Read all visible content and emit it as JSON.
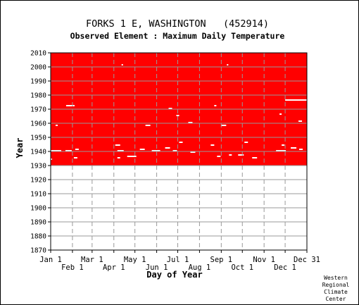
{
  "chart_data": {
    "type": "heatmap",
    "title": "FORKS 1 E, WASHINGTON   (452914)",
    "subtitle": "Observed Element : Maximum Daily Temperature",
    "xlabel": "Day of Year",
    "ylabel": "Year",
    "ylim": [
      1870,
      2010
    ],
    "xlim": [
      1,
      366
    ],
    "y_ticks": [
      1870,
      1880,
      1890,
      1900,
      1910,
      1920,
      1930,
      1940,
      1950,
      1960,
      1970,
      1980,
      1990,
      2000,
      2010
    ],
    "x_ticks_top": [
      {
        "label": "Jan 1",
        "day": 1
      },
      {
        "label": "Mar 1",
        "day": 60
      },
      {
        "label": "May 1",
        "day": 121
      },
      {
        "label": "Jul 1",
        "day": 182
      },
      {
        "label": "Sep 1",
        "day": 244
      },
      {
        "label": "Nov 1",
        "day": 305
      },
      {
        "label": "Dec 31",
        "day": 366
      }
    ],
    "x_ticks_bottom": [
      {
        "label": "Feb 1",
        "day": 32
      },
      {
        "label": "Apr 1",
        "day": 91
      },
      {
        "label": "Jun 1",
        "day": 152
      },
      {
        "label": "Aug 1",
        "day": 213
      },
      {
        "label": "Oct 1",
        "day": 274
      },
      {
        "label": "Dec 1",
        "day": 335
      }
    ],
    "grid": true,
    "data_color": "#ff0000",
    "data_period": {
      "start_year": 1930,
      "end_year": 2010
    },
    "missing_segments": [
      {
        "year": 1934,
        "day_start": 1,
        "day_end": 2
      },
      {
        "year": 1935,
        "day_start": 34,
        "day_end": 38
      },
      {
        "year": 1935,
        "day_start": 96,
        "day_end": 99
      },
      {
        "year": 1935,
        "day_start": 288,
        "day_end": 294
      },
      {
        "year": 1936,
        "day_start": 110,
        "day_end": 122
      },
      {
        "year": 1936,
        "day_start": 238,
        "day_end": 242
      },
      {
        "year": 1937,
        "day_start": 255,
        "day_end": 258
      },
      {
        "year": 1937,
        "day_start": 268,
        "day_end": 275
      },
      {
        "year": 1939,
        "day_start": 200,
        "day_end": 206
      },
      {
        "year": 1940,
        "day_start": 1,
        "day_end": 15
      },
      {
        "year": 1940,
        "day_start": 22,
        "day_end": 30
      },
      {
        "year": 1940,
        "day_start": 96,
        "day_end": 104
      },
      {
        "year": 1940,
        "day_start": 145,
        "day_end": 156
      },
      {
        "year": 1940,
        "day_start": 175,
        "day_end": 180
      },
      {
        "year": 1940,
        "day_start": 322,
        "day_end": 335
      },
      {
        "year": 1941,
        "day_start": 36,
        "day_end": 40
      },
      {
        "year": 1941,
        "day_start": 128,
        "day_end": 134
      },
      {
        "year": 1941,
        "day_start": 355,
        "day_end": 359
      },
      {
        "year": 1942,
        "day_start": 164,
        "day_end": 170
      },
      {
        "year": 1942,
        "day_start": 343,
        "day_end": 350
      },
      {
        "year": 1944,
        "day_start": 93,
        "day_end": 99
      },
      {
        "year": 1944,
        "day_start": 229,
        "day_end": 233
      },
      {
        "year": 1944,
        "day_start": 330,
        "day_end": 333
      },
      {
        "year": 1946,
        "day_start": 184,
        "day_end": 188
      },
      {
        "year": 1946,
        "day_start": 277,
        "day_end": 281
      },
      {
        "year": 1958,
        "day_start": 8,
        "day_end": 10
      },
      {
        "year": 1958,
        "day_start": 136,
        "day_end": 142
      },
      {
        "year": 1958,
        "day_start": 244,
        "day_end": 250
      },
      {
        "year": 1960,
        "day_start": 197,
        "day_end": 202
      },
      {
        "year": 1961,
        "day_start": 354,
        "day_end": 358
      },
      {
        "year": 1965,
        "day_start": 180,
        "day_end": 183
      },
      {
        "year": 1966,
        "day_start": 327,
        "day_end": 329
      },
      {
        "year": 1970,
        "day_start": 169,
        "day_end": 173
      },
      {
        "year": 1972,
        "day_start": 23,
        "day_end": 34
      },
      {
        "year": 1972,
        "day_start": 234,
        "day_end": 236
      },
      {
        "year": 1976,
        "day_start": 335,
        "day_end": 366
      },
      {
        "year": 2001,
        "day_start": 252,
        "day_end": 253
      },
      {
        "year": 2001,
        "day_start": 102,
        "day_end": 103
      }
    ]
  },
  "credit": {
    "line1": "Western",
    "line2": "Regional",
    "line3": "Climate",
    "line4": "Center"
  }
}
